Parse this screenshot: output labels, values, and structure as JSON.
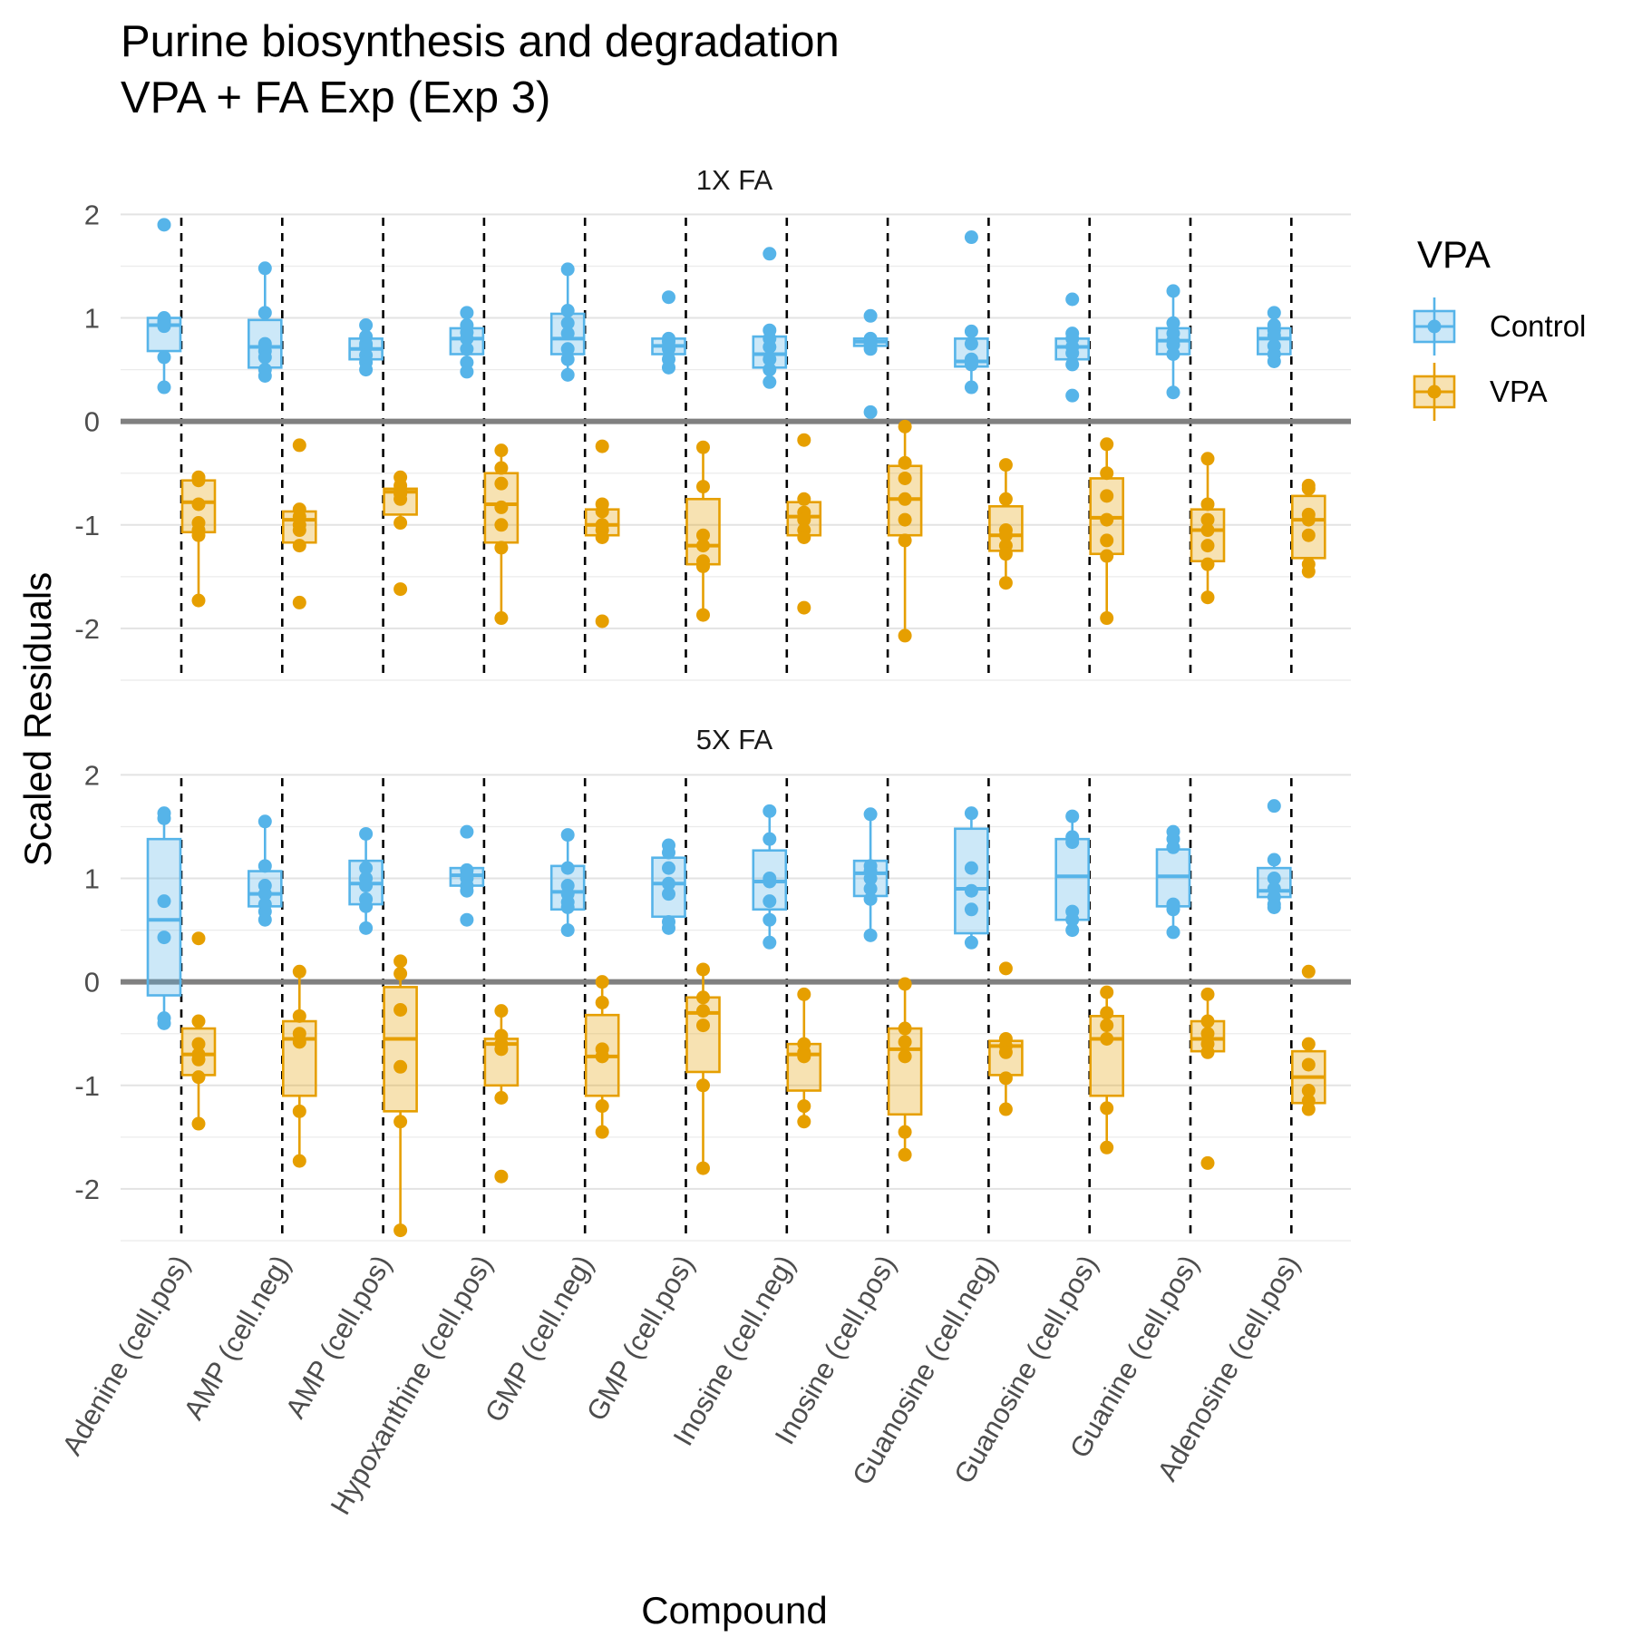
{
  "chart_data": {
    "type": "box",
    "title": "Purine biosynthesis and degradation",
    "subtitle": "VPA + FA Exp (Exp 3)",
    "xlabel": "Compound",
    "ylabel": "Scaled Residuals",
    "ylim": [
      -2.5,
      2.1
    ],
    "yticks": [
      -2,
      -1,
      0,
      1,
      2
    ],
    "grid": true,
    "legend": {
      "title": "VPA",
      "position": "right",
      "entries": [
        {
          "name": "Control",
          "color": "#56B4E9"
        },
        {
          "name": "VPA",
          "color": "#E69F00"
        }
      ]
    },
    "categories": [
      "Adenine (cell.pos)",
      "AMP (cell.neg)",
      "AMP (cell.pos)",
      "Hypoxanthine (cell.pos)",
      "GMP (cell.neg)",
      "GMP (cell.pos)",
      "Inosine (cell.neg)",
      "Inosine (cell.pos)",
      "Guanosine (cell.neg)",
      "Guanosine (cell.pos)",
      "Guanine (cell.pos)",
      "Adenosine (cell.pos)"
    ],
    "panels": [
      {
        "label": "1X FA",
        "series": [
          {
            "name": "Control",
            "boxes": [
              {
                "q1": 0.68,
                "median": 0.93,
                "q3": 1.0,
                "points": [
                  1.9,
                  1.0,
                  0.97,
                  0.95,
                  0.92,
                  0.62,
                  0.33
                ]
              },
              {
                "q1": 0.52,
                "median": 0.72,
                "q3": 0.98,
                "points": [
                  1.48,
                  1.05,
                  0.75,
                  0.68,
                  0.62,
                  0.5,
                  0.44
                ]
              },
              {
                "q1": 0.6,
                "median": 0.7,
                "q3": 0.8,
                "points": [
                  0.93,
                  0.82,
                  0.75,
                  0.72,
                  0.64,
                  0.57,
                  0.5
                ]
              },
              {
                "q1": 0.65,
                "median": 0.8,
                "q3": 0.9,
                "points": [
                  1.05,
                  0.93,
                  0.86,
                  0.8,
                  0.7,
                  0.57,
                  0.48
                ]
              },
              {
                "q1": 0.65,
                "median": 0.8,
                "q3": 1.04,
                "points": [
                  1.47,
                  1.07,
                  0.95,
                  0.85,
                  0.7,
                  0.6,
                  0.45
                ]
              },
              {
                "q1": 0.65,
                "median": 0.73,
                "q3": 0.8,
                "points": [
                  1.2,
                  0.8,
                  0.77,
                  0.73,
                  0.7,
                  0.6,
                  0.52
                ]
              },
              {
                "q1": 0.52,
                "median": 0.65,
                "q3": 0.82,
                "points": [
                  1.62,
                  0.88,
                  0.8,
                  0.72,
                  0.6,
                  0.5,
                  0.38
                ]
              },
              {
                "q1": 0.73,
                "median": 0.77,
                "q3": 0.8,
                "points": [
                  1.02,
                  0.8,
                  0.78,
                  0.77,
                  0.75,
                  0.7,
                  0.09
                ]
              },
              {
                "q1": 0.53,
                "median": 0.58,
                "q3": 0.8,
                "points": [
                  1.78,
                  0.87,
                  0.75,
                  0.6,
                  0.57,
                  0.55,
                  0.33
                ]
              },
              {
                "q1": 0.6,
                "median": 0.72,
                "q3": 0.8,
                "points": [
                  1.18,
                  0.85,
                  0.8,
                  0.72,
                  0.66,
                  0.55,
                  0.25
                ]
              },
              {
                "q1": 0.65,
                "median": 0.78,
                "q3": 0.9,
                "points": [
                  1.26,
                  0.95,
                  0.85,
                  0.78,
                  0.74,
                  0.65,
                  0.28
                ]
              },
              {
                "q1": 0.65,
                "median": 0.8,
                "q3": 0.9,
                "points": [
                  1.05,
                  0.93,
                  0.88,
                  0.83,
                  0.73,
                  0.65,
                  0.58
                ]
              }
            ]
          },
          {
            "name": "VPA",
            "boxes": [
              {
                "q1": -1.07,
                "median": -0.78,
                "q3": -0.57,
                "points": [
                  -0.54,
                  -0.57,
                  -0.8,
                  -0.98,
                  -1.05,
                  -1.1,
                  -1.73
                ]
              },
              {
                "q1": -1.17,
                "median": -0.95,
                "q3": -0.87,
                "points": [
                  -0.23,
                  -0.85,
                  -0.92,
                  -1.0,
                  -1.05,
                  -1.2,
                  -1.75
                ]
              },
              {
                "q1": -0.9,
                "median": -0.68,
                "q3": -0.65,
                "points": [
                  -0.54,
                  -0.62,
                  -0.66,
                  -0.7,
                  -0.75,
                  -0.98,
                  -1.62
                ]
              },
              {
                "q1": -1.17,
                "median": -0.8,
                "q3": -0.5,
                "points": [
                  -0.28,
                  -0.45,
                  -0.6,
                  -0.83,
                  -1.0,
                  -1.22,
                  -1.9
                ]
              },
              {
                "q1": -1.1,
                "median": -1.0,
                "q3": -0.85,
                "points": [
                  -0.24,
                  -0.8,
                  -0.87,
                  -1.0,
                  -1.05,
                  -1.12,
                  -1.93
                ]
              },
              {
                "q1": -1.38,
                "median": -1.2,
                "q3": -0.75,
                "points": [
                  -0.25,
                  -0.63,
                  -1.1,
                  -1.2,
                  -1.35,
                  -1.4,
                  -1.87
                ]
              },
              {
                "q1": -1.1,
                "median": -0.92,
                "q3": -0.78,
                "points": [
                  -0.18,
                  -0.75,
                  -0.88,
                  -0.95,
                  -1.05,
                  -1.12,
                  -1.8
                ]
              },
              {
                "q1": -1.1,
                "median": -0.75,
                "q3": -0.43,
                "points": [
                  -0.05,
                  -0.4,
                  -0.55,
                  -0.75,
                  -0.95,
                  -1.15,
                  -2.07
                ]
              },
              {
                "q1": -1.25,
                "median": -1.1,
                "q3": -0.82,
                "points": [
                  -0.42,
                  -0.75,
                  -1.05,
                  -1.1,
                  -1.2,
                  -1.28,
                  -1.56
                ]
              },
              {
                "q1": -1.28,
                "median": -0.93,
                "q3": -0.55,
                "points": [
                  -0.22,
                  -0.5,
                  -0.72,
                  -0.95,
                  -1.15,
                  -1.3,
                  -1.9
                ]
              },
              {
                "q1": -1.35,
                "median": -1.05,
                "q3": -0.85,
                "points": [
                  -0.36,
                  -0.8,
                  -0.95,
                  -1.05,
                  -1.2,
                  -1.38,
                  -1.7
                ]
              },
              {
                "q1": -1.32,
                "median": -0.95,
                "q3": -0.72,
                "points": [
                  -0.62,
                  -0.65,
                  -0.9,
                  -0.95,
                  -1.1,
                  -1.38,
                  -1.45
                ]
              }
            ]
          }
        ]
      },
      {
        "label": "5X FA",
        "series": [
          {
            "name": "Control",
            "boxes": [
              {
                "q1": -0.13,
                "median": 0.6,
                "q3": 1.38,
                "points": [
                  1.63,
                  1.58,
                  0.78,
                  0.43,
                  -0.35,
                  -0.4
                ]
              },
              {
                "q1": 0.73,
                "median": 0.85,
                "q3": 1.07,
                "points": [
                  1.55,
                  1.12,
                  0.93,
                  0.85,
                  0.75,
                  0.68,
                  0.6
                ]
              },
              {
                "q1": 0.75,
                "median": 0.95,
                "q3": 1.17,
                "points": [
                  1.43,
                  1.1,
                  1.0,
                  0.93,
                  0.8,
                  0.73,
                  0.52
                ]
              },
              {
                "q1": 0.93,
                "median": 1.03,
                "q3": 1.1,
                "points": [
                  1.45,
                  1.08,
                  1.03,
                  1.0,
                  0.93,
                  0.88,
                  0.6
                ]
              },
              {
                "q1": 0.7,
                "median": 0.87,
                "q3": 1.12,
                "points": [
                  1.42,
                  1.1,
                  0.93,
                  0.85,
                  0.77,
                  0.72,
                  0.5
                ]
              },
              {
                "q1": 0.63,
                "median": 0.95,
                "q3": 1.2,
                "points": [
                  1.32,
                  1.25,
                  1.1,
                  0.95,
                  0.85,
                  0.58,
                  0.52
                ]
              },
              {
                "q1": 0.7,
                "median": 0.97,
                "q3": 1.27,
                "points": [
                  1.65,
                  1.38,
                  1.0,
                  0.97,
                  0.78,
                  0.6,
                  0.38
                ]
              },
              {
                "q1": 0.83,
                "median": 1.05,
                "q3": 1.17,
                "points": [
                  1.62,
                  1.12,
                  1.07,
                  1.0,
                  0.9,
                  0.8,
                  0.45
                ]
              },
              {
                "q1": 0.47,
                "median": 0.9,
                "q3": 1.48,
                "points": [
                  1.63,
                  1.1,
                  0.88,
                  0.7,
                  0.38
                ]
              },
              {
                "q1": 0.6,
                "median": 1.02,
                "q3": 1.38,
                "points": [
                  1.6,
                  1.4,
                  1.35,
                  0.68,
                  0.6,
                  0.5
                ]
              },
              {
                "q1": 0.73,
                "median": 1.02,
                "q3": 1.28,
                "points": [
                  1.45,
                  1.38,
                  1.3,
                  0.75,
                  0.7,
                  0.48
                ]
              },
              {
                "q1": 0.82,
                "median": 0.88,
                "q3": 1.1,
                "points": [
                  1.7,
                  1.18,
                  1.0,
                  0.9,
                  0.82,
                  0.75,
                  0.72
                ]
              }
            ]
          },
          {
            "name": "VPA",
            "boxes": [
              {
                "q1": -0.9,
                "median": -0.7,
                "q3": -0.45,
                "points": [
                  0.42,
                  -0.38,
                  -0.6,
                  -0.7,
                  -0.75,
                  -0.92,
                  -1.37
                ]
              },
              {
                "q1": -1.1,
                "median": -0.55,
                "q3": -0.38,
                "points": [
                  0.1,
                  -0.33,
                  -0.5,
                  -0.58,
                  -1.25,
                  -1.73
                ]
              },
              {
                "q1": -1.25,
                "median": -0.55,
                "q3": -0.05,
                "points": [
                  0.2,
                  0.08,
                  -0.27,
                  -0.82,
                  -1.35,
                  -2.4
                ]
              },
              {
                "q1": -1.0,
                "median": -0.6,
                "q3": -0.55,
                "points": [
                  -0.28,
                  -0.52,
                  -0.6,
                  -0.65,
                  -1.12,
                  -1.88
                ]
              },
              {
                "q1": -1.1,
                "median": -0.72,
                "q3": -0.32,
                "points": [
                  0.0,
                  -0.2,
                  -0.65,
                  -0.72,
                  -1.2,
                  -1.45
                ]
              },
              {
                "q1": -0.87,
                "median": -0.3,
                "q3": -0.15,
                "points": [
                  0.12,
                  -0.15,
                  -0.28,
                  -0.42,
                  -1.0,
                  -1.8
                ]
              },
              {
                "q1": -1.05,
                "median": -0.7,
                "q3": -0.6,
                "points": [
                  -0.12,
                  -0.6,
                  -0.68,
                  -0.72,
                  -1.2,
                  -1.35
                ]
              },
              {
                "q1": -1.28,
                "median": -0.65,
                "q3": -0.45,
                "points": [
                  -0.02,
                  -0.45,
                  -0.58,
                  -0.72,
                  -1.45,
                  -1.67
                ]
              },
              {
                "q1": -0.9,
                "median": -0.62,
                "q3": -0.57,
                "points": [
                  0.13,
                  -0.55,
                  -0.62,
                  -0.68,
                  -0.93,
                  -1.23
                ]
              },
              {
                "q1": -1.1,
                "median": -0.55,
                "q3": -0.33,
                "points": [
                  -0.1,
                  -0.3,
                  -0.42,
                  -0.55,
                  -1.22,
                  -1.6
                ]
              },
              {
                "q1": -0.67,
                "median": -0.55,
                "q3": -0.38,
                "points": [
                  -0.12,
                  -0.38,
                  -0.5,
                  -0.6,
                  -0.68,
                  -1.75
                ]
              },
              {
                "q1": -1.17,
                "median": -0.92,
                "q3": -0.67,
                "points": [
                  0.1,
                  -0.6,
                  -0.8,
                  -1.05,
                  -1.15,
                  -1.23
                ]
              }
            ]
          }
        ]
      }
    ]
  }
}
